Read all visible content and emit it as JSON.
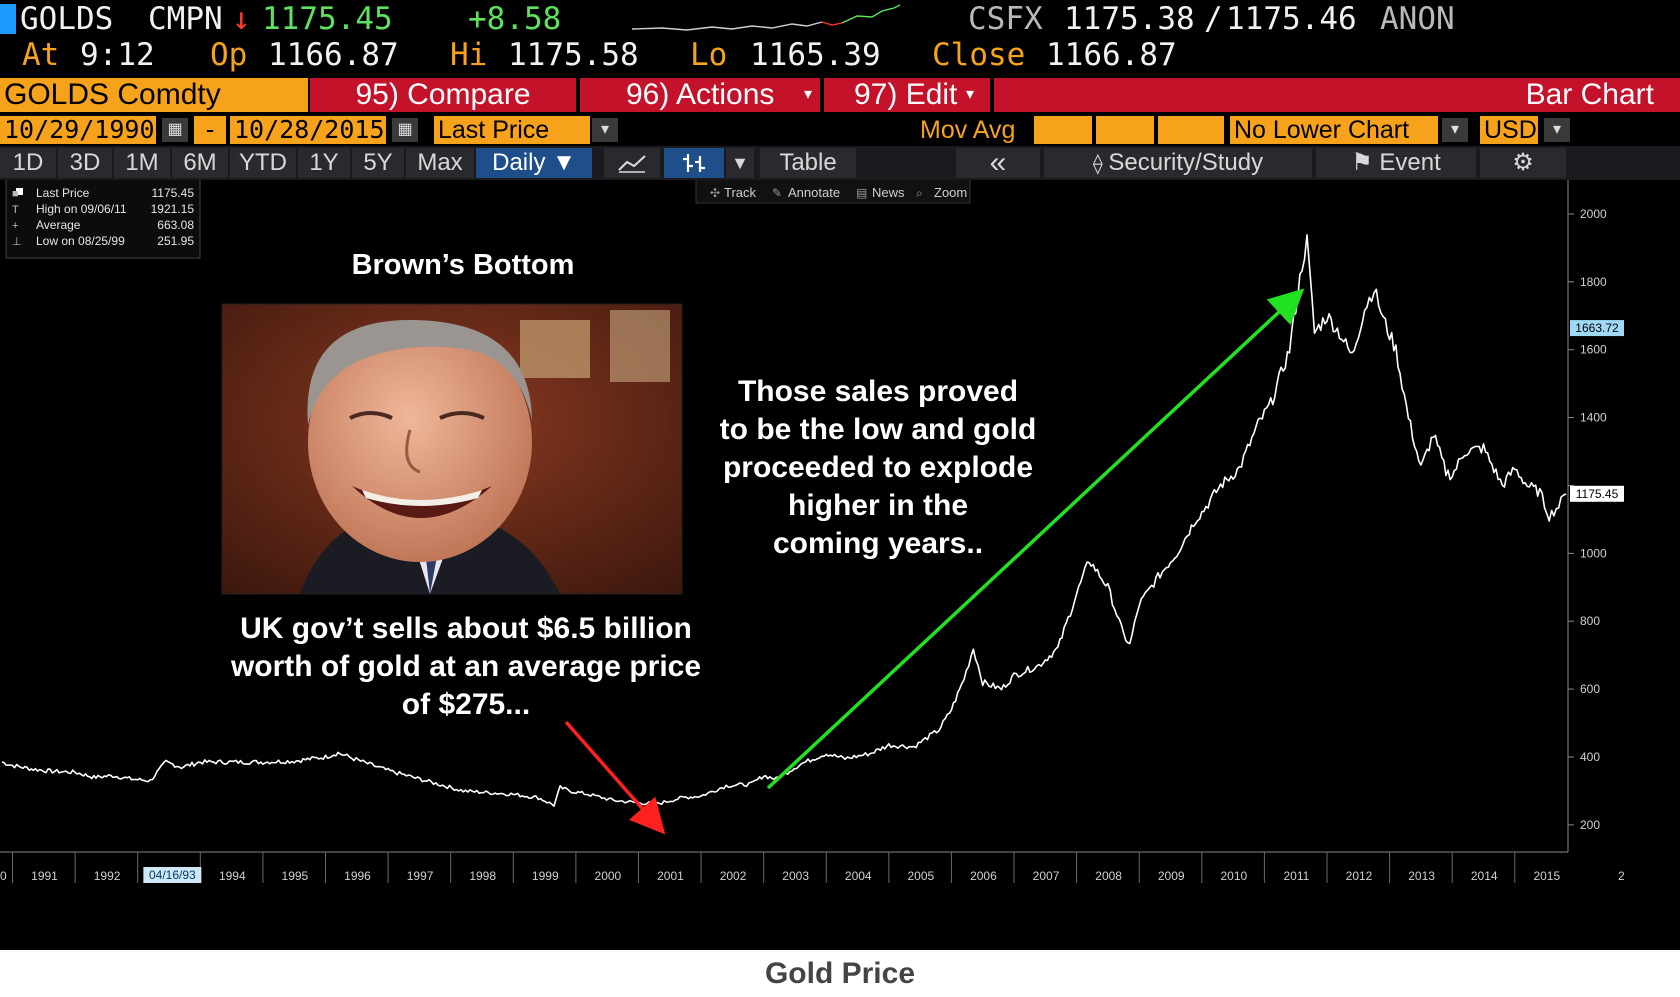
{
  "quote": {
    "ticker": "GOLDS",
    "source": "CMPN",
    "direction_arrow": "↓",
    "last": "1175.45",
    "change": "+8.58",
    "feed": "CSFX",
    "bid": "1175.38",
    "ask": "1175.46",
    "anon": "ANON",
    "at_label": "At",
    "time": "9:12",
    "open_label": "Op",
    "open": "1166.87",
    "high_label": "Hi",
    "high": "1175.58",
    "low_label": "Lo",
    "low": "1165.39",
    "close_label": "Close",
    "close": "1166.87"
  },
  "menubar": {
    "security": "GOLDS Comdty",
    "compare": "95) Compare",
    "actions": "96) Actions",
    "edit": "97) Edit",
    "chart_type": "Bar Chart"
  },
  "params": {
    "start_date": "10/29/1990",
    "dash": "-",
    "end_date": "10/28/2015",
    "field": "Last Price",
    "mov_avg": "Mov Avg",
    "lower_chart": "No Lower Chart",
    "currency": "USD"
  },
  "tabs": {
    "periods": [
      "1D",
      "3D",
      "1M",
      "6M",
      "YTD",
      "1Y",
      "5Y",
      "Max"
    ],
    "frequency": "Daily ▼",
    "table": "Table",
    "collapse": "«",
    "security_study": "Security/Study",
    "event": "Event"
  },
  "tools": {
    "track": "Track",
    "annotate": "Annotate",
    "news": "News",
    "zoom": "Zoom"
  },
  "legend": {
    "rows": [
      {
        "label": "Last Price",
        "value": "1175.45"
      },
      {
        "label": "High on 09/06/11",
        "value": "1921.15"
      },
      {
        "label": "Average",
        "value": "663.08"
      },
      {
        "label": "Low on 08/25/99",
        "value": "251.95"
      }
    ]
  },
  "annotations": {
    "photo_title": "Brown’s Bottom",
    "left_text": [
      "UK gov’t sells about $6.5 billion",
      "worth of gold at an average price",
      "of $275..."
    ],
    "right_text": [
      "Those sales proved",
      "to be the low and gold",
      "proceeded to explode",
      "higher in the",
      "coming years.."
    ]
  },
  "caption": "Gold Price",
  "colors": {
    "price_line": "#ffffff",
    "red_arrow": "#ff2020",
    "green_arrow": "#22e022",
    "amber": "#f7a21b",
    "menubar_red": "#c4122a"
  },
  "chart_data": {
    "type": "line",
    "title": "",
    "xlabel": "",
    "ylabel": "",
    "xlim": [
      1990.8,
      2015.85
    ],
    "ylim": [
      120,
      2100
    ],
    "y_ticks": [
      200,
      400,
      600,
      800,
      1000,
      1200,
      1400,
      1600,
      1800,
      2000
    ],
    "y_tick_labels": [
      "200",
      "400",
      "600",
      "800",
      "1000",
      "",
      "1400",
      "1600",
      "1800",
      "2000"
    ],
    "x_ticks": [
      1991,
      1992,
      1993,
      1994,
      1995,
      1996,
      1997,
      1998,
      1999,
      2000,
      2001,
      2002,
      2003,
      2004,
      2005,
      2006,
      2007,
      2008,
      2009,
      2010,
      2011,
      2012,
      2013,
      2014,
      2015
    ],
    "x_tick_labels": [
      "1991",
      "1992",
      "",
      "1994",
      "1995",
      "1996",
      "1997",
      "1998",
      "1999",
      "2000",
      "2001",
      "2002",
      "2003",
      "2004",
      "2005",
      "2006",
      "2007",
      "2008",
      "2009",
      "2010",
      "2011",
      "2012",
      "2013",
      "2014",
      "2015"
    ],
    "axis_edge_labels": {
      "left": "0",
      "right": "2"
    },
    "cursor_date": "04/16/93",
    "right_badges": [
      {
        "value": 1663.72,
        "label": "1663.72"
      },
      {
        "value": 1175.45,
        "label": "1175.45"
      }
    ],
    "grid": false,
    "series": [
      {
        "name": "Last Price",
        "x": [
          1990.83,
          1991.0,
          1991.3,
          1991.6,
          1992.0,
          1992.3,
          1992.6,
          1992.9,
          1993.2,
          1993.45,
          1993.7,
          1994.0,
          1994.5,
          1995.0,
          1995.5,
          1996.0,
          1996.2,
          1996.6,
          1997.0,
          1997.4,
          1997.8,
          1998.2,
          1998.6,
          1999.0,
          1999.4,
          1999.65,
          1999.75,
          1999.9,
          2000.2,
          2000.6,
          2001.0,
          2001.3,
          2001.7,
          2002.0,
          2002.4,
          2002.8,
          2003.0,
          2003.2,
          2003.6,
          2004.0,
          2004.3,
          2004.7,
          2005.0,
          2005.4,
          2005.8,
          2006.0,
          2006.2,
          2006.35,
          2006.5,
          2006.8,
          2007.0,
          2007.4,
          2007.7,
          2008.0,
          2008.2,
          2008.5,
          2008.75,
          2008.85,
          2009.0,
          2009.3,
          2009.6,
          2009.9,
          2010.0,
          2010.3,
          2010.6,
          2010.9,
          2011.1,
          2011.4,
          2011.6,
          2011.68,
          2011.8,
          2012.0,
          2012.2,
          2012.4,
          2012.6,
          2012.75,
          2012.9,
          2013.1,
          2013.3,
          2013.5,
          2013.7,
          2013.9,
          2014.0,
          2014.2,
          2014.5,
          2014.8,
          2015.0,
          2015.2,
          2015.4,
          2015.55,
          2015.7,
          2015.82
        ],
        "y": [
          385,
          375,
          365,
          358,
          355,
          340,
          345,
          335,
          330,
          385,
          370,
          385,
          385,
          385,
          388,
          400,
          412,
          385,
          360,
          340,
          320,
          300,
          295,
          290,
          280,
          258,
          310,
          300,
          290,
          272,
          265,
          262,
          280,
          285,
          315,
          320,
          345,
          335,
          380,
          410,
          395,
          410,
          435,
          430,
          480,
          540,
          630,
          720,
          620,
          600,
          640,
          670,
          720,
          880,
          980,
          900,
          760,
          730,
          850,
          930,
          1000,
          1100,
          1120,
          1200,
          1250,
          1380,
          1440,
          1600,
          1850,
          1921,
          1650,
          1700,
          1650,
          1580,
          1720,
          1780,
          1690,
          1600,
          1400,
          1250,
          1350,
          1240,
          1230,
          1300,
          1310,
          1200,
          1250,
          1200,
          1180,
          1110,
          1140,
          1175
        ]
      }
    ]
  }
}
